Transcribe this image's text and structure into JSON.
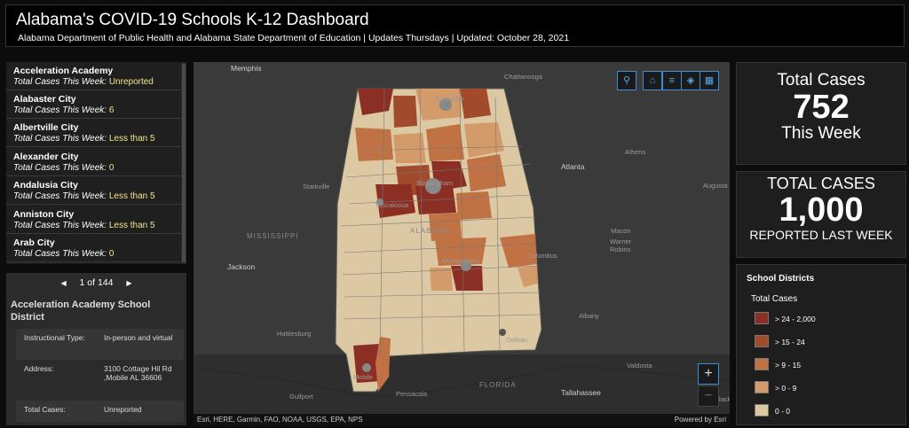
{
  "header": {
    "title": "Alabama's COVID-19 Schools K-12 Dashboard",
    "subtitle": "Alabama Department of Public Health and Alabama State Department of Education | Updates Thursdays | Updated: October 28, 2021"
  },
  "list": {
    "cases_label": "Total Cases This Week:",
    "items": [
      {
        "name": "Acceleration Academy",
        "value": "Unreported"
      },
      {
        "name": "Alabaster City",
        "value": "6"
      },
      {
        "name": "Albertville City",
        "value": "Less than 5"
      },
      {
        "name": "Alexander City",
        "value": "0"
      },
      {
        "name": "Andalusia City",
        "value": "Less than 5"
      },
      {
        "name": "Anniston City",
        "value": "Less than 5"
      },
      {
        "name": "Arab City",
        "value": "0"
      }
    ]
  },
  "detail": {
    "pager": "1 of 144",
    "title": "Acceleration Academy School District",
    "rows": [
      {
        "key": "Instructional Type:",
        "value": "In-person and virtual"
      },
      {
        "key": "Address:",
        "value": "3100 Cottage Hil Rd ,Mobile AL 36606"
      },
      {
        "key": "Total Cases:",
        "value": "Unreported"
      }
    ]
  },
  "map": {
    "labels": {
      "memphis": "Memphis",
      "chattanooga": "Chattanooga",
      "huntsville": "Huntsville",
      "atlanta": "Atlanta",
      "athens": "Athens",
      "augusta": "Augusta",
      "starkville": "Starkville",
      "birmingham": "Birmingham",
      "tuscaloosa": "Tuscaloosa",
      "mississippi": "MISSISSIPPI",
      "alabama": "ALABAMA",
      "jackson": "Jackson",
      "macon": "Macon",
      "warner_robins": "Warner\nRobins",
      "columbus": "Columbus",
      "montgomery": "Montgomery",
      "albany": "Albany",
      "hattiesburg": "Hattiesburg",
      "dothan": "Dothan",
      "valdosta": "Valdosta",
      "mobile": "Mobile",
      "gulfport": "Gulfport",
      "pensacola": "Pensacola",
      "florida": "FLORIDA",
      "tallahassee": "Tallahassee",
      "jack": "Jack"
    },
    "attribution": "Esri, HERE, Garmin, FAO, NOAA, USGS, EPA, NPS",
    "powered": "Powered by Esri",
    "tools": [
      "search-icon",
      "home-icon",
      "list-icon",
      "layers-icon",
      "basemap-icon"
    ],
    "zoom_in": "+",
    "zoom_out": "−"
  },
  "kpi_week": {
    "title": "Total Cases",
    "value": "752",
    "caption": "This Week"
  },
  "kpi_last": {
    "title": "TOTAL CASES",
    "value": "1,000",
    "caption": "REPORTED LAST WEEK"
  },
  "legend": {
    "title": "School Districts",
    "subtitle": "Total Cases",
    "classes": [
      {
        "label": "> 24 - 2,000",
        "color": "#8b2e24"
      },
      {
        "label": "> 15 - 24",
        "color": "#a24a2c"
      },
      {
        "label": "> 9 - 15",
        "color": "#c07245"
      },
      {
        "label": "> 0 - 9",
        "color": "#d39a6a"
      },
      {
        "label": "0 - 0",
        "color": "#dcc9a3"
      }
    ]
  }
}
